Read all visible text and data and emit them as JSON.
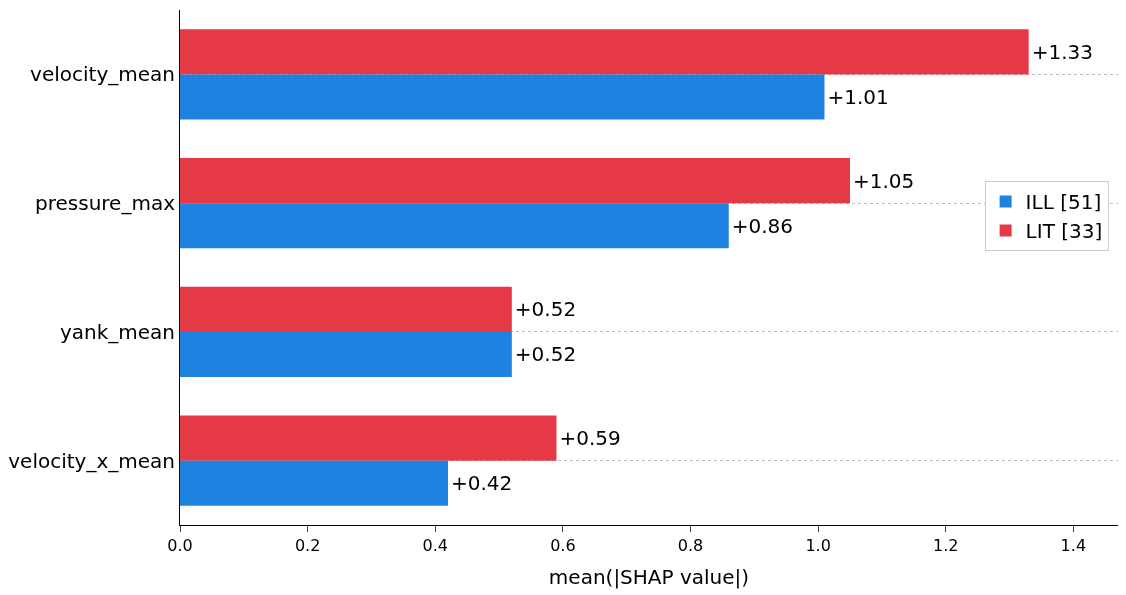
{
  "chart_data": {
    "type": "bar",
    "orientation": "horizontal",
    "xlabel": "mean(|SHAP value|)",
    "categories": [
      "velocity_mean",
      "pressure_max",
      "yank_mean",
      "velocity_x_mean"
    ],
    "series": [
      {
        "name": "ILL [51]",
        "color": "#1e82e0",
        "values": [
          1.01,
          0.86,
          0.52,
          0.42
        ],
        "value_labels": [
          "+1.01",
          "+0.86",
          "+0.52",
          "+0.42"
        ]
      },
      {
        "name": "LIT [33]",
        "color": "#e63946",
        "values": [
          1.33,
          1.05,
          0.52,
          0.59
        ],
        "value_labels": [
          "+1.33",
          "+1.05",
          "+0.52",
          "+0.59"
        ]
      }
    ],
    "xlim": [
      0,
      1.47
    ],
    "xticks": [
      "0.0",
      "0.2",
      "0.4",
      "0.6",
      "0.8",
      "1.0",
      "1.2",
      "1.4"
    ],
    "grid": "y",
    "legend": "right"
  }
}
